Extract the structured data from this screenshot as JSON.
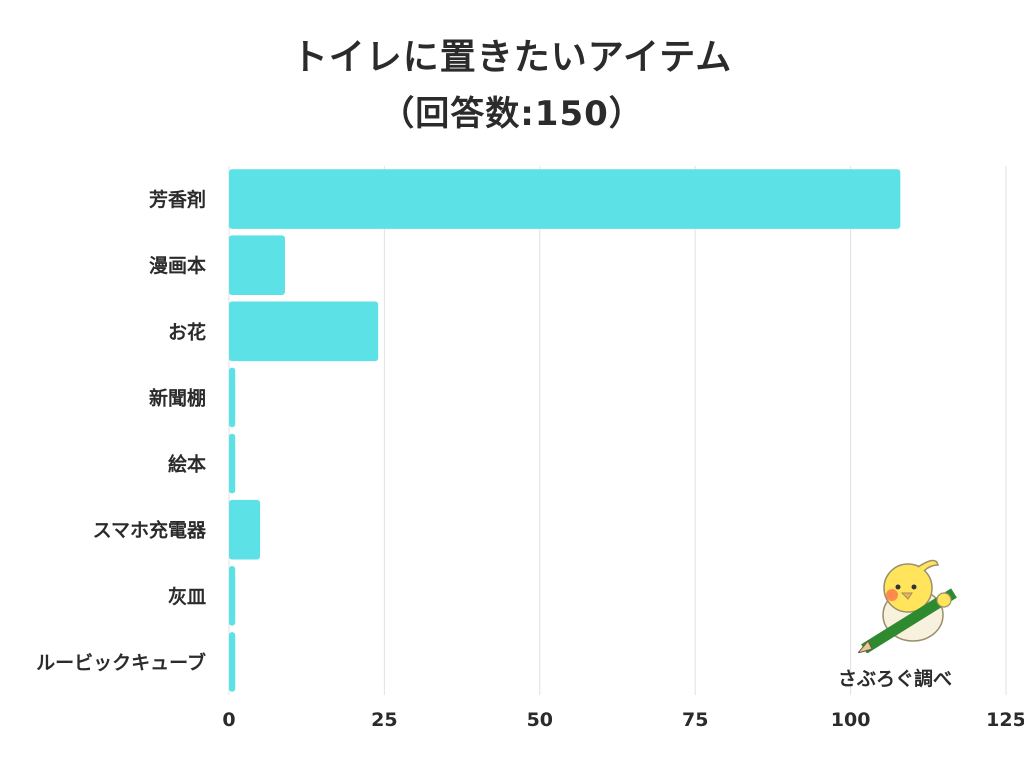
{
  "title": {
    "line1": "トイレに置きたいアイテム",
    "line2": "（回答数:150）"
  },
  "credit": "さぶろぐ調べ",
  "colors": {
    "bar": "#5ce1e6",
    "grid": "#e2e2e2",
    "text": "#2b2b2b"
  },
  "chart_data": {
    "type": "bar",
    "orientation": "horizontal",
    "title": "トイレに置きたいアイテム（回答数:150）",
    "categories": [
      "芳香剤",
      "漫画本",
      "お花",
      "新聞棚",
      "絵本",
      "スマホ充電器",
      "灰皿",
      "ルービックキューブ"
    ],
    "values": [
      108,
      9,
      24,
      1,
      1,
      5,
      1,
      1
    ],
    "xlim": [
      0,
      125
    ],
    "xticks": [
      "0",
      "25",
      "50",
      "75",
      "100",
      "125"
    ],
    "grid": true,
    "legend": "none"
  }
}
